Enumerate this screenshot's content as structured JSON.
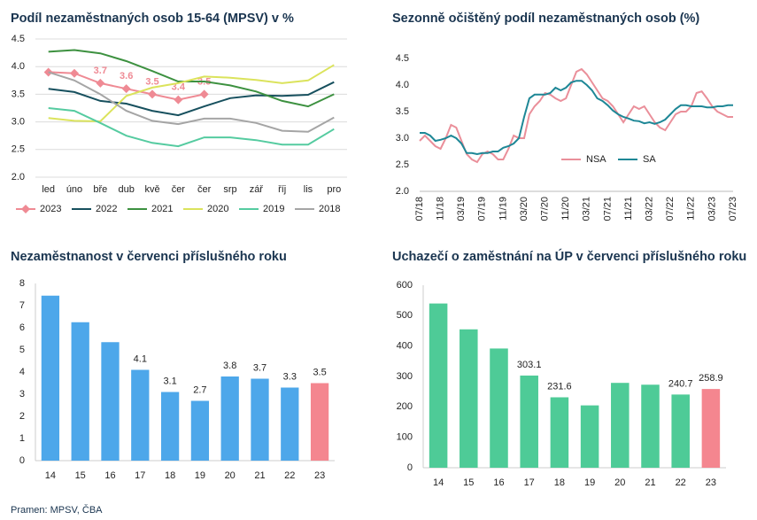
{
  "chart_data": [
    {
      "type": "line",
      "title": "Podíl nezaměstnaných osob 15-64 (MPSV) v %",
      "categories": [
        "led",
        "úno",
        "bře",
        "dub",
        "kvě",
        "čer",
        "čer",
        "srp",
        "zář",
        "říj",
        "lis",
        "pro"
      ],
      "ylim": [
        2.0,
        4.5
      ],
      "yticks": [
        {
          "value": 2.0,
          "label": "2.0"
        },
        {
          "value": 2.5,
          "label": "2.5"
        },
        {
          "value": 3.0,
          "label": "3.0"
        },
        {
          "value": 3.5,
          "label": "3.5"
        },
        {
          "value": 4.0,
          "label": "4.0"
        },
        {
          "value": 4.5,
          "label": "4.5"
        }
      ],
      "grid": true,
      "legend": "bottom",
      "series": [
        {
          "name": "2023",
          "color": "#ef8a94",
          "marker": "diamond",
          "values": [
            3.9,
            3.88,
            3.7,
            3.6,
            3.5,
            3.4,
            3.5,
            null,
            null,
            null,
            null,
            null
          ],
          "value_labels": [
            null,
            null,
            "3.7",
            "3.6",
            "3.5",
            "3.4",
            "3.5",
            null,
            null,
            null,
            null,
            null
          ]
        },
        {
          "name": "2022",
          "color": "#17505e",
          "values": [
            3.6,
            3.54,
            3.38,
            3.33,
            3.2,
            3.12,
            3.28,
            3.43,
            3.48,
            3.47,
            3.49,
            3.72
          ]
        },
        {
          "name": "2021",
          "color": "#3d9140",
          "values": [
            4.27,
            4.3,
            4.24,
            4.1,
            3.92,
            3.73,
            3.73,
            3.66,
            3.55,
            3.38,
            3.28,
            3.5
          ]
        },
        {
          "name": "2020",
          "color": "#dbe35c",
          "values": [
            3.07,
            3.02,
            3.01,
            3.47,
            3.62,
            3.7,
            3.82,
            3.8,
            3.76,
            3.7,
            3.75,
            4.03
          ]
        },
        {
          "name": "2019",
          "color": "#55cba0",
          "values": [
            3.25,
            3.2,
            2.98,
            2.75,
            2.62,
            2.56,
            2.72,
            2.72,
            2.67,
            2.59,
            2.59,
            2.87
          ]
        },
        {
          "name": "2018",
          "color": "#a5a5a5",
          "values": [
            3.9,
            3.75,
            3.5,
            3.2,
            3.02,
            2.96,
            3.06,
            3.06,
            2.98,
            2.84,
            2.82,
            3.08
          ]
        }
      ]
    },
    {
      "type": "line",
      "title": "Sezonně očištěný podíl nezaměstnaných osob (%)",
      "categories": [
        "07/18",
        null,
        null,
        null,
        "11/18",
        null,
        null,
        null,
        "03/19",
        null,
        null,
        null,
        "07/19",
        null,
        null,
        null,
        "11/19",
        null,
        null,
        null,
        "03/20",
        null,
        null,
        null,
        "07/20",
        null,
        null,
        null,
        "11/20",
        null,
        null,
        null,
        "03/21",
        null,
        null,
        null,
        "07/21",
        null,
        null,
        null,
        "11/21",
        null,
        null,
        null,
        "03/22",
        null,
        null,
        null,
        "07/22",
        null,
        null,
        null,
        "11/22",
        null,
        null,
        null,
        "03/23",
        null,
        null,
        null,
        "07/23"
      ],
      "ylim": [
        2.0,
        4.5
      ],
      "yticks": [
        {
          "value": 2.0,
          "label": "2.0"
        },
        {
          "value": 2.5,
          "label": "2.5"
        },
        {
          "value": 3.0,
          "label": "3.0"
        },
        {
          "value": 3.5,
          "label": "3.5"
        },
        {
          "value": 4.0,
          "label": "4.0"
        },
        {
          "value": 4.5,
          "label": "4.5"
        }
      ],
      "grid": false,
      "legend": "bottom",
      "series": [
        {
          "name": "NSA",
          "color": "#ea8f9a",
          "values": [
            2.95,
            3.05,
            2.95,
            2.85,
            2.8,
            3.0,
            3.25,
            3.2,
            2.95,
            2.7,
            2.6,
            2.55,
            2.7,
            2.75,
            2.7,
            2.6,
            2.6,
            2.8,
            3.05,
            3.0,
            3.0,
            3.45,
            3.6,
            3.7,
            3.85,
            3.82,
            3.75,
            3.7,
            3.75,
            4.0,
            4.25,
            4.3,
            4.2,
            4.05,
            3.9,
            3.75,
            3.7,
            3.6,
            3.45,
            3.3,
            3.45,
            3.6,
            3.55,
            3.6,
            3.45,
            3.3,
            3.2,
            3.15,
            3.3,
            3.45,
            3.5,
            3.5,
            3.6,
            3.85,
            3.88,
            3.75,
            3.6,
            3.5,
            3.45,
            3.4,
            3.4
          ]
        },
        {
          "name": "SA",
          "color": "#1e8796",
          "values": [
            3.1,
            3.1,
            3.05,
            2.95,
            2.97,
            3.0,
            3.05,
            3.0,
            2.9,
            2.72,
            2.72,
            2.7,
            2.72,
            2.72,
            2.75,
            2.75,
            2.82,
            2.85,
            2.9,
            3.0,
            3.4,
            3.75,
            3.82,
            3.82,
            3.82,
            3.85,
            3.95,
            3.9,
            3.95,
            4.05,
            4.08,
            4.08,
            4.0,
            3.9,
            3.75,
            3.7,
            3.62,
            3.52,
            3.45,
            3.4,
            3.37,
            3.33,
            3.32,
            3.28,
            3.3,
            3.27,
            3.3,
            3.35,
            3.45,
            3.55,
            3.62,
            3.62,
            3.6,
            3.6,
            3.6,
            3.58,
            3.58,
            3.6,
            3.6,
            3.62,
            3.62
          ]
        }
      ]
    },
    {
      "type": "bar",
      "title": "Nezaměstnanost v červenci příslušného roku",
      "categories": [
        "14",
        "15",
        "16",
        "17",
        "18",
        "19",
        "20",
        "21",
        "22",
        "23"
      ],
      "values": [
        7.45,
        6.25,
        5.35,
        4.1,
        3.1,
        2.7,
        3.8,
        3.7,
        3.3,
        3.5
      ],
      "value_labels": [
        null,
        null,
        null,
        "4.1",
        "3.1",
        "2.7",
        "3.8",
        "3.7",
        "3.3",
        "3.5"
      ],
      "colors": [
        "#4da7ea",
        "#4da7ea",
        "#4da7ea",
        "#4da7ea",
        "#4da7ea",
        "#4da7ea",
        "#4da7ea",
        "#4da7ea",
        "#4da7ea",
        "#f4868f"
      ],
      "ylim": [
        0,
        8
      ],
      "yticks": [
        0,
        1,
        2,
        3,
        4,
        5,
        6,
        7,
        8
      ]
    },
    {
      "type": "bar",
      "title": "Uchazečí o zaměstnání na ÚP v červenci příslušného roku",
      "categories": [
        "14",
        "15",
        "16",
        "17",
        "18",
        "19",
        "20",
        "21",
        "22",
        "23"
      ],
      "values": [
        540,
        455,
        392,
        303.1,
        231.6,
        205,
        279,
        273,
        240.7,
        258.9
      ],
      "value_labels": [
        null,
        null,
        null,
        "303.1",
        "231.6",
        null,
        null,
        null,
        "240.7",
        "258.9"
      ],
      "colors": [
        "#4ecb97",
        "#4ecb97",
        "#4ecb97",
        "#4ecb97",
        "#4ecb97",
        "#4ecb97",
        "#4ecb97",
        "#4ecb97",
        "#4ecb97",
        "#f4868f"
      ],
      "ylim": [
        0,
        600
      ],
      "yticks": [
        0,
        100,
        200,
        300,
        400,
        500,
        600
      ]
    }
  ],
  "source": "Pramen: MPSV, ČBA"
}
